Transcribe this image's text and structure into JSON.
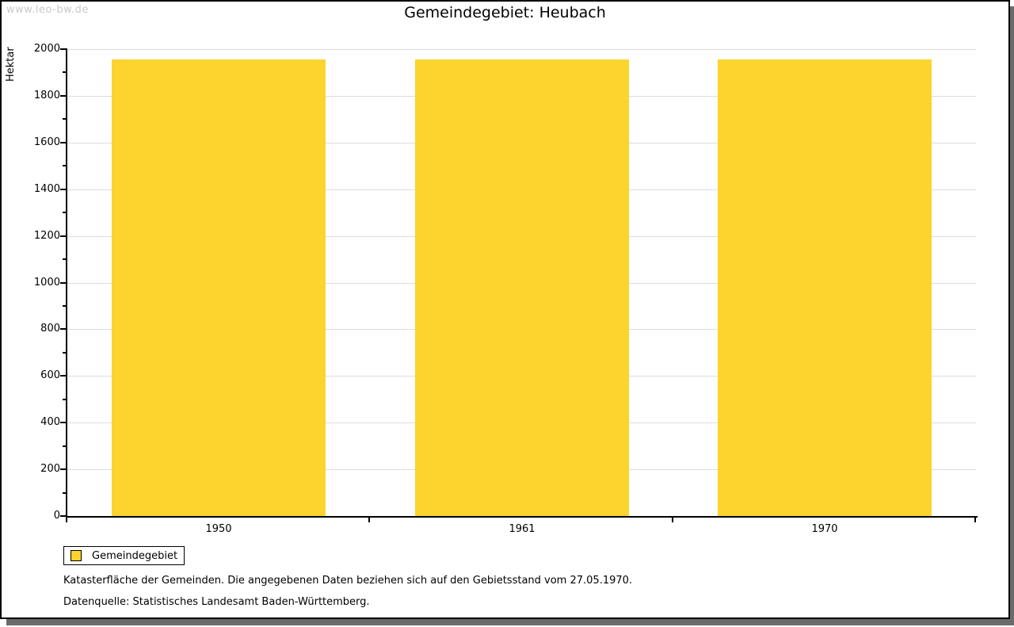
{
  "watermark": "www.leo-bw.de",
  "title": "Gemeindegebiet: Heubach",
  "chart_data": {
    "type": "bar",
    "title": "Gemeindegebiet: Heubach",
    "categories": [
      "1950",
      "1961",
      "1970"
    ],
    "series": [
      {
        "name": "Gemeindegebiet",
        "values": [
          1955,
          1955,
          1955
        ],
        "color": "#fdd32e"
      }
    ],
    "xlabel": "",
    "ylabel": "Hektar",
    "ylim": [
      0,
      2000
    ],
    "ytick_step": 200,
    "yminor_step": 100,
    "grid": "horizontal gridlines at major ticks",
    "legend_position": "below-left"
  },
  "legend": {
    "items": [
      {
        "label": "Gemeindegebiet",
        "color": "#fdd32e"
      }
    ]
  },
  "footnotes": {
    "line1": "Katasterfläche der Gemeinden. Die angegebenen Daten beziehen sich auf den Gebietsstand vom 27.05.1970.",
    "line2": "Datenquelle: Statistisches Landesamt Baden-Württemberg."
  },
  "colors": {
    "bar": "#fdd32e",
    "gridline": "#dcdcdc",
    "axis": "#000000",
    "watermark_text": "#c9c9c9",
    "frame_shadow": "#6b6b6b",
    "background": "#ffffff"
  }
}
